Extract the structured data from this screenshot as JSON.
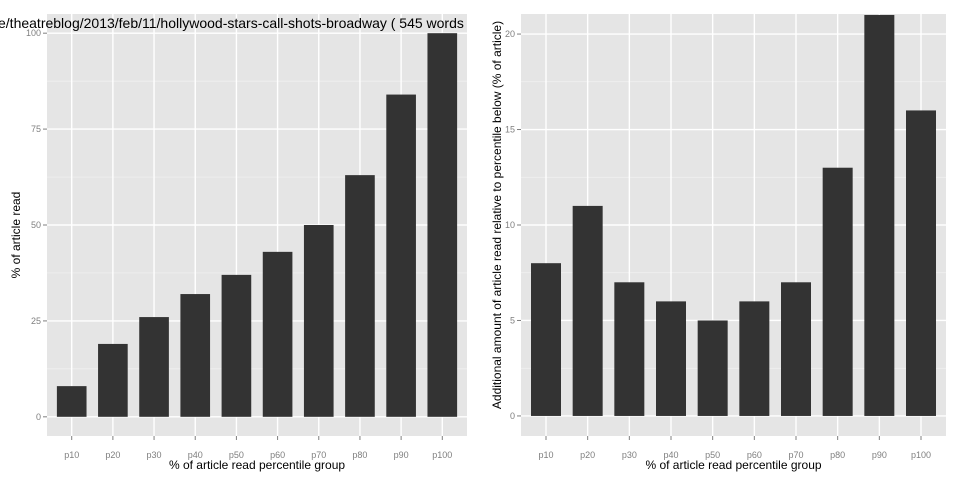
{
  "chart_data": [
    {
      "type": "bar",
      "title": "e/theatreblog/2013/feb/11/hollywood-stars-call-shots-broadway ( 545 words",
      "xlabel": "% of article read percentile group",
      "ylabel": "% of article read",
      "categories": [
        "p10",
        "p20",
        "p30",
        "p40",
        "p50",
        "p60",
        "p70",
        "p80",
        "p90",
        "p100"
      ],
      "values": [
        8,
        19,
        26,
        32,
        37,
        43,
        50,
        63,
        84,
        100
      ],
      "ylim": [
        -5,
        105
      ],
      "yticks": [
        0,
        25,
        50,
        75,
        100
      ],
      "grid": true,
      "bar_color": "#333333",
      "panel_color": "#e5e5e5"
    },
    {
      "type": "bar",
      "title": "",
      "xlabel": "% of article read percentile group",
      "ylabel": "Additional amount of article read relative to percentile below (% of article)",
      "categories": [
        "p10",
        "p20",
        "p30",
        "p40",
        "p50",
        "p60",
        "p70",
        "p80",
        "p90",
        "p100"
      ],
      "values": [
        8,
        11,
        7,
        6,
        5,
        6,
        7,
        13,
        21,
        16
      ],
      "ylim": [
        -1.05,
        21.05
      ],
      "yticks": [
        0,
        5,
        10,
        15,
        20
      ],
      "grid": true,
      "bar_color": "#333333",
      "panel_color": "#e5e5e5"
    }
  ]
}
